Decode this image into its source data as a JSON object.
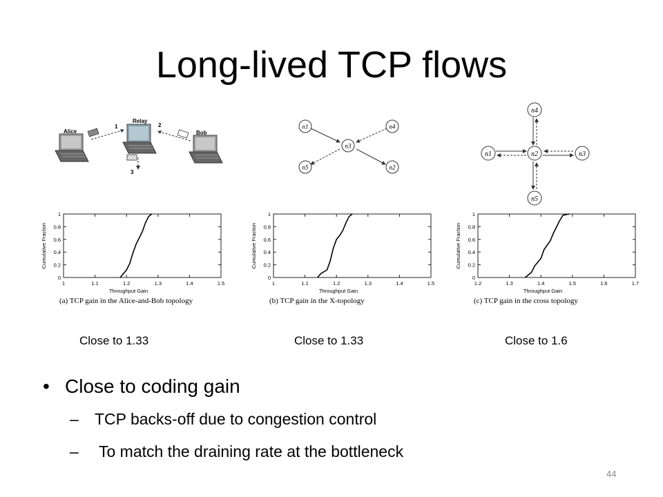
{
  "slide": {
    "title": "Long-lived TCP flows",
    "page_number": "44"
  },
  "topology_a": {
    "alice": "Alice",
    "relay": "Relay",
    "bob": "Bob",
    "step1": "1",
    "step2": "2",
    "step3": "3"
  },
  "topology_b": {
    "nodes": [
      "n1",
      "n4",
      "n3",
      "n5",
      "n2"
    ]
  },
  "topology_c": {
    "nodes": [
      "n4",
      "n1",
      "n2",
      "n3",
      "n5"
    ]
  },
  "plots": [
    {
      "ylabel": "Cumulative Fraction",
      "xlabel": "Throughput Gain",
      "xticks": [
        "1",
        "1.1",
        "1.2",
        "1.3",
        "1.4",
        "1.5"
      ],
      "yticks": [
        "0",
        "0.2",
        "0.4",
        "0.6",
        "0.8",
        "1"
      ],
      "caption": "(a) TCP gain in the Alice-and-Bob topology",
      "note": "Close to 1.33"
    },
    {
      "ylabel": "Cumulative Fraction",
      "xlabel": "Throughput Gain",
      "xticks": [
        "1",
        "1.1",
        "1.2",
        "1.3",
        "1.4",
        "1.5"
      ],
      "yticks": [
        "0",
        "0.2",
        "0.4",
        "0.6",
        "0.8",
        "1"
      ],
      "caption": "(b) TCP gain in the X-topology",
      "note": "Close to 1.33"
    },
    {
      "ylabel": "Cumulative Fraction",
      "xlabel": "Throughput Gain",
      "xticks": [
        "1.2",
        "1.3",
        "1.4",
        "1.5",
        "1.6",
        "1.7"
      ],
      "yticks": [
        "0",
        "0.2",
        "0.4",
        "0.6",
        "0.8",
        "1"
      ],
      "caption": "(c) TCP gain in the cross topology",
      "note": "Close to 1.6"
    }
  ],
  "chart_data": [
    {
      "type": "line",
      "title": "(a) TCP gain in the Alice-and-Bob topology",
      "xlabel": "Throughput Gain",
      "ylabel": "Cumulative Fraction",
      "xlim": [
        1,
        1.5
      ],
      "ylim": [
        0,
        1
      ],
      "grid": false,
      "series": [
        {
          "x": [
            1.18,
            1.19,
            1.2,
            1.21,
            1.22,
            1.23,
            1.24,
            1.25,
            1.26,
            1.27,
            1.28
          ],
          "y": [
            0,
            0.06,
            0.12,
            0.22,
            0.38,
            0.52,
            0.62,
            0.72,
            0.86,
            0.96,
            1
          ]
        }
      ]
    },
    {
      "type": "line",
      "title": "(b) TCP gain in the X-topology",
      "xlabel": "Throughput Gain",
      "ylabel": "Cumulative Fraction",
      "xlim": [
        1,
        1.5
      ],
      "ylim": [
        0,
        1
      ],
      "grid": false,
      "series": [
        {
          "x": [
            1.14,
            1.15,
            1.17,
            1.18,
            1.19,
            1.2,
            1.21,
            1.22,
            1.23,
            1.24,
            1.25
          ],
          "y": [
            0,
            0.06,
            0.12,
            0.26,
            0.46,
            0.6,
            0.66,
            0.74,
            0.86,
            0.96,
            1
          ]
        }
      ]
    },
    {
      "type": "line",
      "title": "(c) TCP gain in the cross topology",
      "xlabel": "Throughput Gain",
      "ylabel": "Cumulative Fraction",
      "xlim": [
        1.2,
        1.7
      ],
      "ylim": [
        0,
        1
      ],
      "grid": false,
      "series": [
        {
          "x": [
            1.35,
            1.37,
            1.38,
            1.4,
            1.41,
            1.43,
            1.44,
            1.45,
            1.46,
            1.47,
            1.49
          ],
          "y": [
            0,
            0.08,
            0.18,
            0.3,
            0.44,
            0.58,
            0.7,
            0.8,
            0.9,
            0.98,
            1
          ]
        }
      ]
    }
  ],
  "bullets": {
    "main": "Close to coding gain",
    "sub1": "TCP backs-off due to congestion control",
    "sub2": " To match the draining rate at the bottleneck",
    "dash": "–",
    "dot": "•"
  }
}
